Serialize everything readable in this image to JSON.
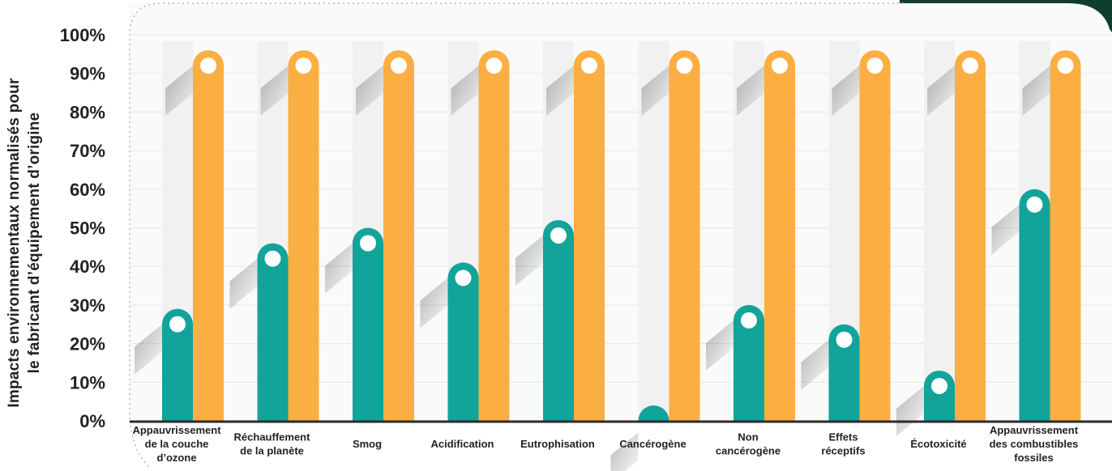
{
  "chart_data": {
    "type": "bar",
    "ylabel": "Impacts environnementaux normalisés pour\nle fabricant d’équipement d’origine",
    "xlabel": "",
    "ylim": [
      0,
      100
    ],
    "yticks": [
      "0%",
      "10%",
      "20%",
      "30%",
      "40%",
      "50%",
      "60%",
      "70%",
      "80%",
      "90%",
      "100%"
    ],
    "grid": true,
    "categories": [
      "Appauvrissement\nde la couche\nd’ozone",
      "Réchauffement\nde la planète",
      "Smog",
      "Acidification",
      "Eutrophisation",
      "Cancérogène",
      "Non\ncancérogène",
      "Effets\nréceptifs",
      "Écotoxicité",
      "Appauvrissement\ndes combustibles\nfossiles"
    ],
    "series": [
      {
        "values": [
          29,
          46,
          50,
          41,
          52,
          1,
          30,
          25,
          13,
          60
        ]
      },
      {
        "values": [
          96,
          96,
          96,
          96,
          96,
          96,
          96,
          96,
          96,
          96
        ]
      }
    ],
    "colors": {
      "series_1": "#12a39a",
      "series_2": "#fbae42",
      "background_column": "#f1f1f1",
      "panel": "#fafafa",
      "corner": "#0f3d2e",
      "text": "#222222"
    }
  }
}
